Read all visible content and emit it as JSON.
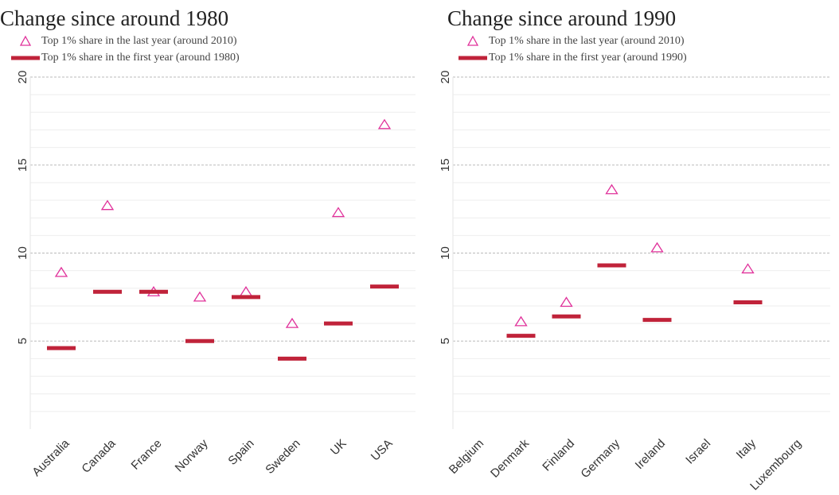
{
  "chart_data": [
    {
      "type": "dot",
      "title": "Change since around 1980",
      "categories": [
        "Australia",
        "Canada",
        "France",
        "Norway",
        "Spain",
        "Sweden",
        "UK",
        "USA"
      ],
      "series": [
        {
          "name": "Top 1% share in the last year (around 2010)",
          "color": "#e0309a",
          "marker": "triangle",
          "values": [
            8.9,
            12.7,
            7.8,
            7.5,
            7.8,
            6.0,
            12.3,
            17.3
          ]
        },
        {
          "name": "Top 1% share in the first year (around 1980)",
          "color": "#c0233a",
          "marker": "hline",
          "values": [
            4.6,
            7.8,
            7.8,
            5.0,
            7.5,
            4.0,
            6.0,
            8.1
          ]
        }
      ],
      "ylim": [
        0,
        20
      ],
      "yticks": [
        5,
        10,
        15,
        20
      ],
      "minor_yticks": [
        1,
        2,
        3,
        4,
        6,
        7,
        8,
        9,
        11,
        12,
        13,
        14,
        16,
        17,
        18,
        19
      ],
      "grid": true
    },
    {
      "type": "dot",
      "title": "Change since around 1990",
      "categories": [
        "Belgium",
        "Denmark",
        "Finland",
        "Germany",
        "Ireland",
        "Israel",
        "Italy",
        "Luxembourg"
      ],
      "series": [
        {
          "name": "Top 1% share in the last year (around 2010)",
          "color": "#e0309a",
          "marker": "triangle",
          "values": [
            null,
            6.1,
            7.2,
            13.6,
            10.3,
            null,
            9.1,
            null
          ]
        },
        {
          "name": "Top 1% share in the first year (around 1990)",
          "color": "#c0233a",
          "marker": "hline",
          "values": [
            null,
            5.3,
            6.4,
            9.3,
            6.2,
            null,
            7.2,
            null
          ]
        }
      ],
      "ylim": [
        0,
        20
      ],
      "yticks": [
        5,
        10,
        15,
        20
      ],
      "minor_yticks": [
        1,
        2,
        3,
        4,
        6,
        7,
        8,
        9,
        11,
        12,
        13,
        14,
        16,
        17,
        18,
        19
      ],
      "grid": true
    }
  ]
}
